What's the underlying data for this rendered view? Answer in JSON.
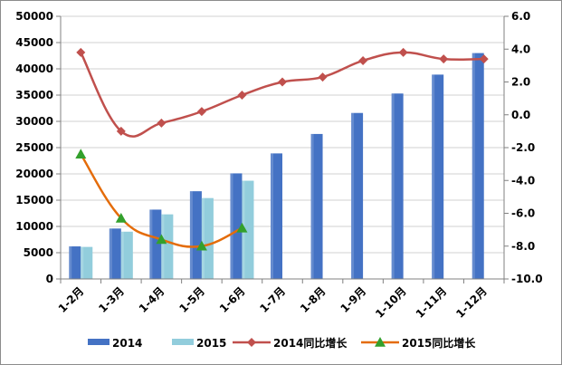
{
  "chart_data": {
    "type": "bar",
    "categories": [
      "1-2月",
      "1-3月",
      "1-4月",
      "1-5月",
      "1-6月",
      "1-7月",
      "1-8月",
      "1-9月",
      "1-10月",
      "1-11月",
      "1-12月"
    ],
    "series": [
      {
        "name": "2014",
        "type": "bar",
        "axis": "left",
        "color": "#4472c4",
        "values": [
          6200,
          9600,
          13200,
          16700,
          20100,
          23900,
          27600,
          31600,
          35300,
          38900,
          43000
        ]
      },
      {
        "name": "2015",
        "type": "bar",
        "axis": "left",
        "color": "#92cddc",
        "values": [
          6100,
          9000,
          12300,
          15400,
          18700,
          null,
          null,
          null,
          null,
          null,
          null
        ]
      },
      {
        "name": "2014同比增长",
        "type": "line",
        "axis": "right",
        "color": "#c0504d",
        "marker": "diamond",
        "values": [
          3.8,
          -1.0,
          -0.5,
          0.2,
          1.2,
          2.0,
          2.3,
          3.3,
          3.8,
          3.4,
          3.4
        ]
      },
      {
        "name": "2015同比增长",
        "type": "line",
        "axis": "right",
        "color": "#e46c0a",
        "marker": "triangle",
        "marker_color": "#33a02c",
        "values": [
          -2.4,
          -6.3,
          -7.6,
          -8.0,
          -6.9,
          null,
          null,
          null,
          null,
          null,
          null
        ]
      }
    ],
    "ylim": [
      0,
      50000
    ],
    "yticks": [
      "0",
      "5000",
      "10000",
      "15000",
      "20000",
      "25000",
      "30000",
      "35000",
      "40000",
      "45000",
      "50000"
    ],
    "y2lim": [
      -10,
      6
    ],
    "y2ticks": [
      "-10.0",
      "-8.0",
      "-6.0",
      "-4.0",
      "-2.0",
      "0.0",
      "2.0",
      "4.0",
      "6.0"
    ],
    "grid": true,
    "legend": "bottom"
  }
}
